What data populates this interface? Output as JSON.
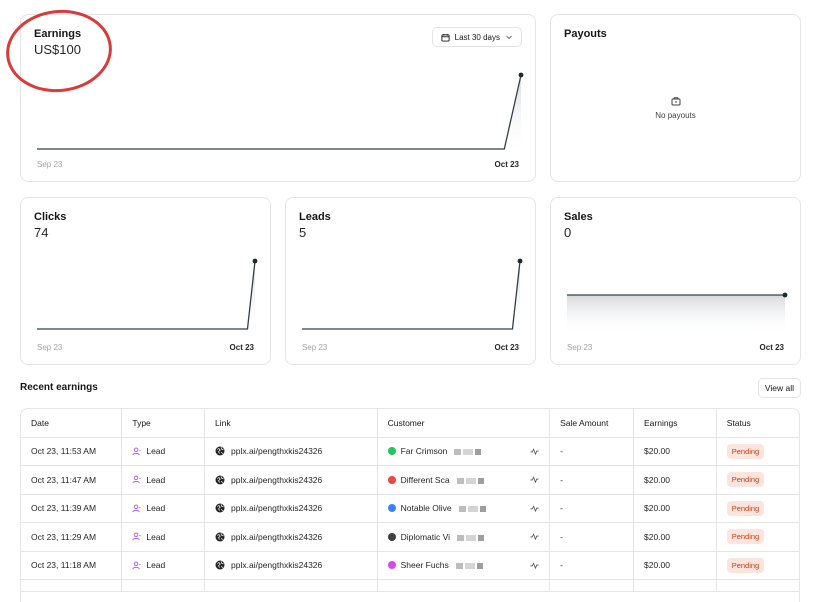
{
  "earnings": {
    "title": "Earnings",
    "value": "US$100",
    "range_label": "Last 30 days",
    "x_start": "Sep 23",
    "x_end": "Oct 23",
    "series": [
      0,
      0,
      0,
      0,
      0,
      0,
      0,
      0,
      0,
      0,
      0,
      0,
      0,
      0,
      0,
      0,
      0,
      0,
      0,
      0,
      0,
      0,
      0,
      0,
      0,
      0,
      0,
      0,
      0,
      100
    ]
  },
  "payouts": {
    "title": "Payouts",
    "empty_text": "No payouts"
  },
  "clicks": {
    "title": "Clicks",
    "value": "74",
    "x_start": "Sep 23",
    "x_end": "Oct 23",
    "series": [
      0,
      0,
      0,
      0,
      0,
      0,
      0,
      0,
      0,
      0,
      0,
      0,
      0,
      0,
      0,
      0,
      0,
      0,
      0,
      0,
      0,
      0,
      0,
      0,
      0,
      0,
      0,
      0,
      0,
      74
    ]
  },
  "leads": {
    "title": "Leads",
    "value": "5",
    "x_start": "Sep 23",
    "x_end": "Oct 23",
    "series": [
      0,
      0,
      0,
      0,
      0,
      0,
      0,
      0,
      0,
      0,
      0,
      0,
      0,
      0,
      0,
      0,
      0,
      0,
      0,
      0,
      0,
      0,
      0,
      0,
      0,
      0,
      0,
      0,
      0,
      5
    ]
  },
  "sales": {
    "title": "Sales",
    "value": "0",
    "x_start": "Sep 23",
    "x_end": "Oct 23",
    "series": [
      0,
      0,
      0,
      0,
      0,
      0,
      0,
      0,
      0,
      0,
      0,
      0,
      0,
      0,
      0,
      0,
      0,
      0,
      0,
      0,
      0,
      0,
      0,
      0,
      0,
      0,
      0,
      0,
      0,
      0
    ]
  },
  "recent": {
    "title": "Recent earnings",
    "view_all": "View all",
    "columns": [
      "Date",
      "Type",
      "Link",
      "Customer",
      "Sale Amount",
      "Earnings",
      "Status"
    ],
    "rows": [
      {
        "date": "Oct 23, 11:53 AM",
        "type": "Lead",
        "link": "pplx.ai/pengthxkis24326",
        "customer": "Far Crimson",
        "avatar_color": "#22c55e",
        "sale_amount": "-",
        "earnings": "$20.00",
        "status": "Pending"
      },
      {
        "date": "Oct 23, 11:47 AM",
        "type": "Lead",
        "link": "pplx.ai/pengthxkis24326",
        "customer": "Different Sca",
        "avatar_color": "#ef4444",
        "sale_amount": "-",
        "earnings": "$20.00",
        "status": "Pending"
      },
      {
        "date": "Oct 23, 11:39 AM",
        "type": "Lead",
        "link": "pplx.ai/pengthxkis24326",
        "customer": "Notable Olive",
        "avatar_color": "#3b82f6",
        "sale_amount": "-",
        "earnings": "$20.00",
        "status": "Pending"
      },
      {
        "date": "Oct 23, 11:29 AM",
        "type": "Lead",
        "link": "pplx.ai/pengthxkis24326",
        "customer": "Diplomatic Vi",
        "avatar_color": "#404040",
        "sale_amount": "-",
        "earnings": "$20.00",
        "status": "Pending"
      },
      {
        "date": "Oct 23, 11:18 AM",
        "type": "Lead",
        "link": "pplx.ai/pengthxkis24326",
        "customer": "Sheer Fuchs",
        "avatar_color": "#d946ef",
        "sale_amount": "-",
        "earnings": "$20.00",
        "status": "Pending"
      }
    ]
  },
  "colors": {
    "line": "#334048",
    "accent_lead": "#a855f7",
    "pending_bg": "#fde4de",
    "pending_text": "#c2410c",
    "annotation": "#d93a3a"
  }
}
